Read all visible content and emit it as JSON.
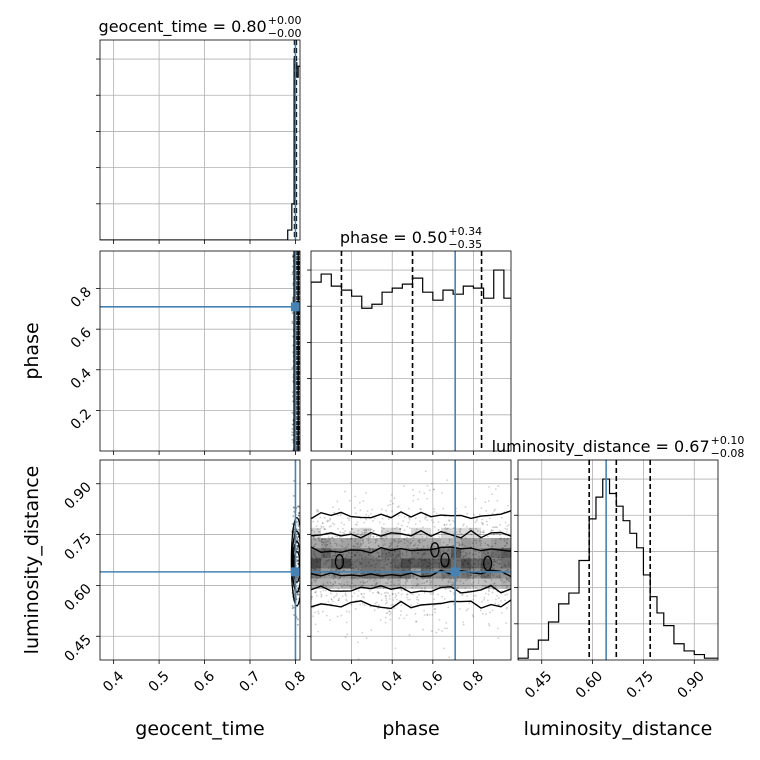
{
  "chart_data": {
    "type": "scatter",
    "subtype": "corner-plot",
    "parameters": [
      {
        "key": "geocent_time",
        "axis_label": "geocent_time",
        "title_main": "geocent_time = 0.80",
        "title_sup": "+0.00",
        "title_sub": "−0.00",
        "range": [
          0.37,
          0.81
        ],
        "ticks": [
          {
            "v": 0.4,
            "label": "0.4"
          },
          {
            "v": 0.5,
            "label": "0.5"
          },
          {
            "v": 0.6,
            "label": "0.6"
          },
          {
            "v": 0.7,
            "label": "0.7"
          },
          {
            "v": 0.8,
            "label": "0.8"
          }
        ],
        "truth": 0.8,
        "quantiles": [
          0.798,
          0.8,
          0.802
        ],
        "hist": {
          "edges": [
            0.37,
            0.783,
            0.792,
            0.797,
            0.8,
            0.803,
            0.806,
            0.81
          ],
          "counts": [
            0,
            0.055,
            0.2,
            1.0,
            0.98,
            0.9,
            0.96
          ]
        }
      },
      {
        "key": "phase",
        "axis_label": "phase",
        "title_main": "phase = 0.50",
        "title_sup": "+0.34",
        "title_sub": "−0.35",
        "range": [
          0.0,
          0.985
        ],
        "ticks": [
          {
            "v": 0.2,
            "label": "0.2"
          },
          {
            "v": 0.4,
            "label": "0.4"
          },
          {
            "v": 0.6,
            "label": "0.6"
          },
          {
            "v": 0.8,
            "label": "0.8"
          }
        ],
        "truth": 0.71,
        "quantiles": [
          0.15,
          0.5,
          0.84
        ],
        "hist": {
          "edges": [
            0.0,
            0.05,
            0.1,
            0.15,
            0.2,
            0.25,
            0.3,
            0.35,
            0.4,
            0.45,
            0.5,
            0.55,
            0.6,
            0.65,
            0.7,
            0.75,
            0.8,
            0.85,
            0.9,
            0.95,
            0.985
          ],
          "counts": [
            0.84,
            0.88,
            0.82,
            0.8,
            0.77,
            0.71,
            0.73,
            0.79,
            0.81,
            0.83,
            0.86,
            0.79,
            0.75,
            0.8,
            0.78,
            0.82,
            0.81,
            0.76,
            0.9,
            0.76
          ]
        }
      },
      {
        "key": "luminosity_distance",
        "axis_label": "luminosity_distance",
        "title_main": "luminosity_distance = 0.67",
        "title_sup": "+0.10",
        "title_sub": "−0.08",
        "range": [
          0.38,
          0.97
        ],
        "ticks": [
          {
            "v": 0.45,
            "label": "0.45"
          },
          {
            "v": 0.6,
            "label": "0.60"
          },
          {
            "v": 0.75,
            "label": "0.75"
          },
          {
            "v": 0.9,
            "label": "0.90"
          }
        ],
        "truth": 0.64,
        "quantiles": [
          0.59,
          0.67,
          0.77
        ],
        "hist": {
          "edges": [
            0.38,
            0.41,
            0.44,
            0.47,
            0.5,
            0.53,
            0.56,
            0.59,
            0.61,
            0.63,
            0.65,
            0.67,
            0.69,
            0.71,
            0.73,
            0.75,
            0.77,
            0.79,
            0.81,
            0.84,
            0.87,
            0.9,
            0.93,
            0.97
          ],
          "counts": [
            0.01,
            0.06,
            0.11,
            0.21,
            0.31,
            0.37,
            0.55,
            0.78,
            0.9,
            1.0,
            0.92,
            0.85,
            0.77,
            0.7,
            0.62,
            0.47,
            0.35,
            0.26,
            0.19,
            0.09,
            0.05,
            0.03,
            0.01
          ]
        }
      }
    ],
    "pairs": [
      {
        "x": "geocent_time",
        "y": "phase",
        "truth": [
          0.8,
          0.71
        ]
      },
      {
        "x": "geocent_time",
        "y": "luminosity_distance",
        "truth": [
          0.8,
          0.64
        ]
      },
      {
        "x": "phase",
        "y": "luminosity_distance",
        "truth": [
          0.71,
          0.64
        ]
      }
    ],
    "grid": true,
    "colors": {
      "truth": "#4682b4",
      "contour": "#000000",
      "density": "#000000",
      "grid": "#b0b0b0"
    }
  }
}
